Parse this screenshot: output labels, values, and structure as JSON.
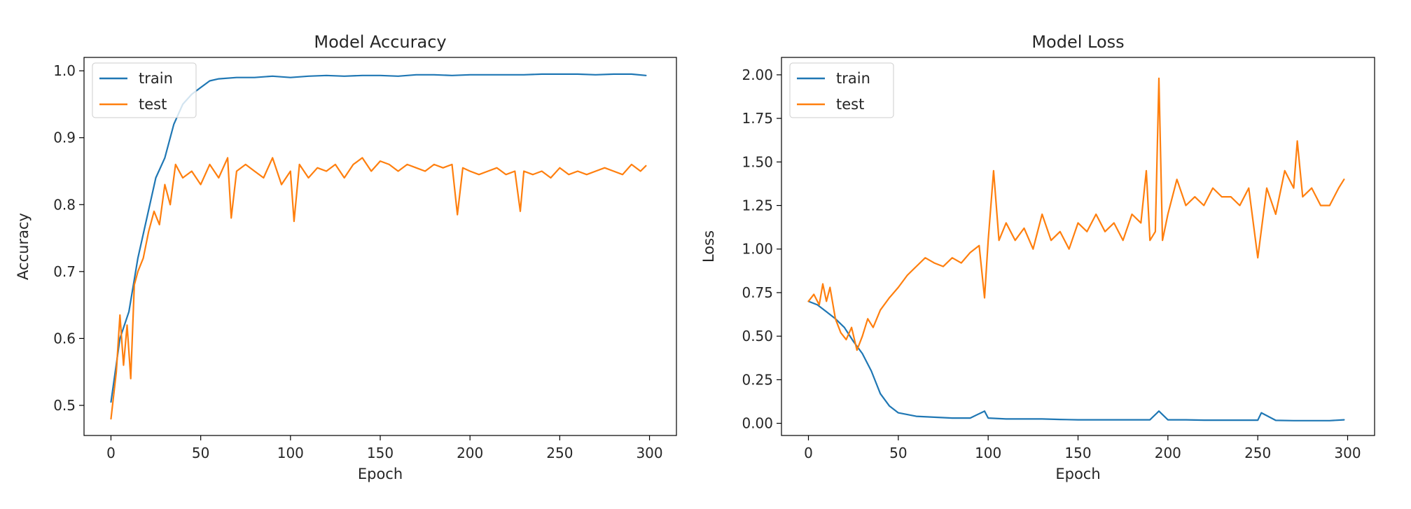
{
  "chart_data": [
    {
      "type": "line",
      "title": "Model Accuracy",
      "xlabel": "Epoch",
      "ylabel": "Accuracy",
      "xlim": [
        -15,
        315
      ],
      "ylim": [
        0.455,
        1.02
      ],
      "xticks": [
        0,
        50,
        100,
        150,
        200,
        250,
        300
      ],
      "yticks": [
        0.5,
        0.6,
        0.7,
        0.8,
        0.9,
        1.0
      ],
      "ytick_labels": [
        "0.5",
        "0.6",
        "0.7",
        "0.8",
        "0.9",
        "1.0"
      ],
      "grid": false,
      "legend_position": "upper left",
      "series": [
        {
          "name": "train",
          "color": "#1f77b4",
          "x": [
            0,
            5,
            10,
            15,
            20,
            25,
            30,
            35,
            40,
            45,
            50,
            55,
            60,
            70,
            80,
            90,
            100,
            110,
            120,
            130,
            140,
            150,
            160,
            170,
            180,
            190,
            200,
            210,
            220,
            230,
            240,
            250,
            260,
            270,
            280,
            290,
            298
          ],
          "y": [
            0.505,
            0.6,
            0.64,
            0.72,
            0.78,
            0.84,
            0.87,
            0.92,
            0.95,
            0.965,
            0.975,
            0.985,
            0.988,
            0.99,
            0.99,
            0.992,
            0.99,
            0.992,
            0.993,
            0.992,
            0.993,
            0.993,
            0.992,
            0.994,
            0.994,
            0.993,
            0.994,
            0.994,
            0.994,
            0.994,
            0.995,
            0.995,
            0.995,
            0.994,
            0.995,
            0.995,
            0.993
          ]
        },
        {
          "name": "test",
          "color": "#ff7f0e",
          "x": [
            0,
            3,
            5,
            7,
            9,
            11,
            13,
            15,
            18,
            21,
            24,
            27,
            30,
            33,
            36,
            40,
            45,
            50,
            55,
            60,
            65,
            67,
            70,
            75,
            80,
            85,
            90,
            95,
            100,
            102,
            105,
            110,
            115,
            120,
            125,
            130,
            135,
            140,
            145,
            150,
            155,
            160,
            165,
            170,
            175,
            180,
            185,
            190,
            193,
            196,
            200,
            205,
            210,
            215,
            220,
            225,
            228,
            230,
            235,
            240,
            245,
            250,
            255,
            260,
            265,
            270,
            275,
            280,
            285,
            290,
            295,
            298
          ],
          "y": [
            0.48,
            0.55,
            0.635,
            0.56,
            0.62,
            0.54,
            0.68,
            0.7,
            0.72,
            0.76,
            0.79,
            0.77,
            0.83,
            0.8,
            0.86,
            0.84,
            0.85,
            0.83,
            0.86,
            0.84,
            0.87,
            0.78,
            0.85,
            0.86,
            0.85,
            0.84,
            0.87,
            0.83,
            0.85,
            0.775,
            0.86,
            0.84,
            0.855,
            0.85,
            0.86,
            0.84,
            0.86,
            0.87,
            0.85,
            0.865,
            0.86,
            0.85,
            0.86,
            0.855,
            0.85,
            0.86,
            0.855,
            0.86,
            0.785,
            0.855,
            0.85,
            0.845,
            0.85,
            0.855,
            0.845,
            0.85,
            0.79,
            0.85,
            0.845,
            0.85,
            0.84,
            0.855,
            0.845,
            0.85,
            0.845,
            0.85,
            0.855,
            0.85,
            0.845,
            0.86,
            0.85,
            0.858
          ]
        }
      ]
    },
    {
      "type": "line",
      "title": "Model Loss",
      "xlabel": "Epoch",
      "ylabel": "Loss",
      "xlim": [
        -15,
        315
      ],
      "ylim": [
        -0.07,
        2.1
      ],
      "xticks": [
        0,
        50,
        100,
        150,
        200,
        250,
        300
      ],
      "yticks": [
        0.0,
        0.25,
        0.5,
        0.75,
        1.0,
        1.25,
        1.5,
        1.75,
        2.0
      ],
      "ytick_labels": [
        "0.00",
        "0.25",
        "0.50",
        "0.75",
        "1.00",
        "1.25",
        "1.50",
        "1.75",
        "2.00"
      ],
      "grid": false,
      "legend_position": "upper left",
      "series": [
        {
          "name": "train",
          "color": "#1f77b4",
          "x": [
            0,
            5,
            10,
            15,
            20,
            25,
            30,
            35,
            40,
            45,
            50,
            55,
            60,
            70,
            80,
            90,
            98,
            100,
            110,
            120,
            130,
            140,
            150,
            160,
            170,
            180,
            190,
            195,
            200,
            210,
            220,
            230,
            240,
            250,
            252,
            260,
            270,
            280,
            290,
            298
          ],
          "y": [
            0.7,
            0.68,
            0.64,
            0.6,
            0.55,
            0.47,
            0.4,
            0.3,
            0.17,
            0.1,
            0.06,
            0.05,
            0.04,
            0.035,
            0.03,
            0.03,
            0.07,
            0.03,
            0.025,
            0.025,
            0.025,
            0.022,
            0.02,
            0.02,
            0.02,
            0.02,
            0.02,
            0.07,
            0.02,
            0.02,
            0.018,
            0.018,
            0.018,
            0.018,
            0.06,
            0.017,
            0.015,
            0.015,
            0.015,
            0.02
          ]
        },
        {
          "name": "test",
          "color": "#ff7f0e",
          "x": [
            0,
            3,
            6,
            8,
            10,
            12,
            15,
            18,
            21,
            24,
            27,
            30,
            33,
            36,
            40,
            45,
            50,
            55,
            60,
            65,
            70,
            75,
            80,
            85,
            90,
            95,
            98,
            100,
            103,
            106,
            110,
            115,
            120,
            125,
            130,
            135,
            140,
            145,
            150,
            155,
            160,
            165,
            170,
            175,
            180,
            185,
            188,
            190,
            193,
            195,
            197,
            200,
            205,
            210,
            215,
            220,
            225,
            230,
            235,
            240,
            245,
            250,
            255,
            260,
            265,
            270,
            272,
            275,
            280,
            285,
            290,
            295,
            298
          ],
          "y": [
            0.7,
            0.74,
            0.68,
            0.8,
            0.7,
            0.78,
            0.6,
            0.52,
            0.48,
            0.55,
            0.42,
            0.5,
            0.6,
            0.55,
            0.65,
            0.72,
            0.78,
            0.85,
            0.9,
            0.95,
            0.92,
            0.9,
            0.95,
            0.92,
            0.98,
            1.02,
            0.72,
            1.05,
            1.45,
            1.05,
            1.15,
            1.05,
            1.12,
            1.0,
            1.2,
            1.05,
            1.1,
            1.0,
            1.15,
            1.1,
            1.2,
            1.1,
            1.15,
            1.05,
            1.2,
            1.15,
            1.45,
            1.05,
            1.1,
            1.98,
            1.05,
            1.2,
            1.4,
            1.25,
            1.3,
            1.25,
            1.35,
            1.3,
            1.3,
            1.25,
            1.35,
            0.95,
            1.35,
            1.2,
            1.45,
            1.35,
            1.62,
            1.3,
            1.35,
            1.25,
            1.25,
            1.35,
            1.4
          ]
        }
      ]
    }
  ]
}
